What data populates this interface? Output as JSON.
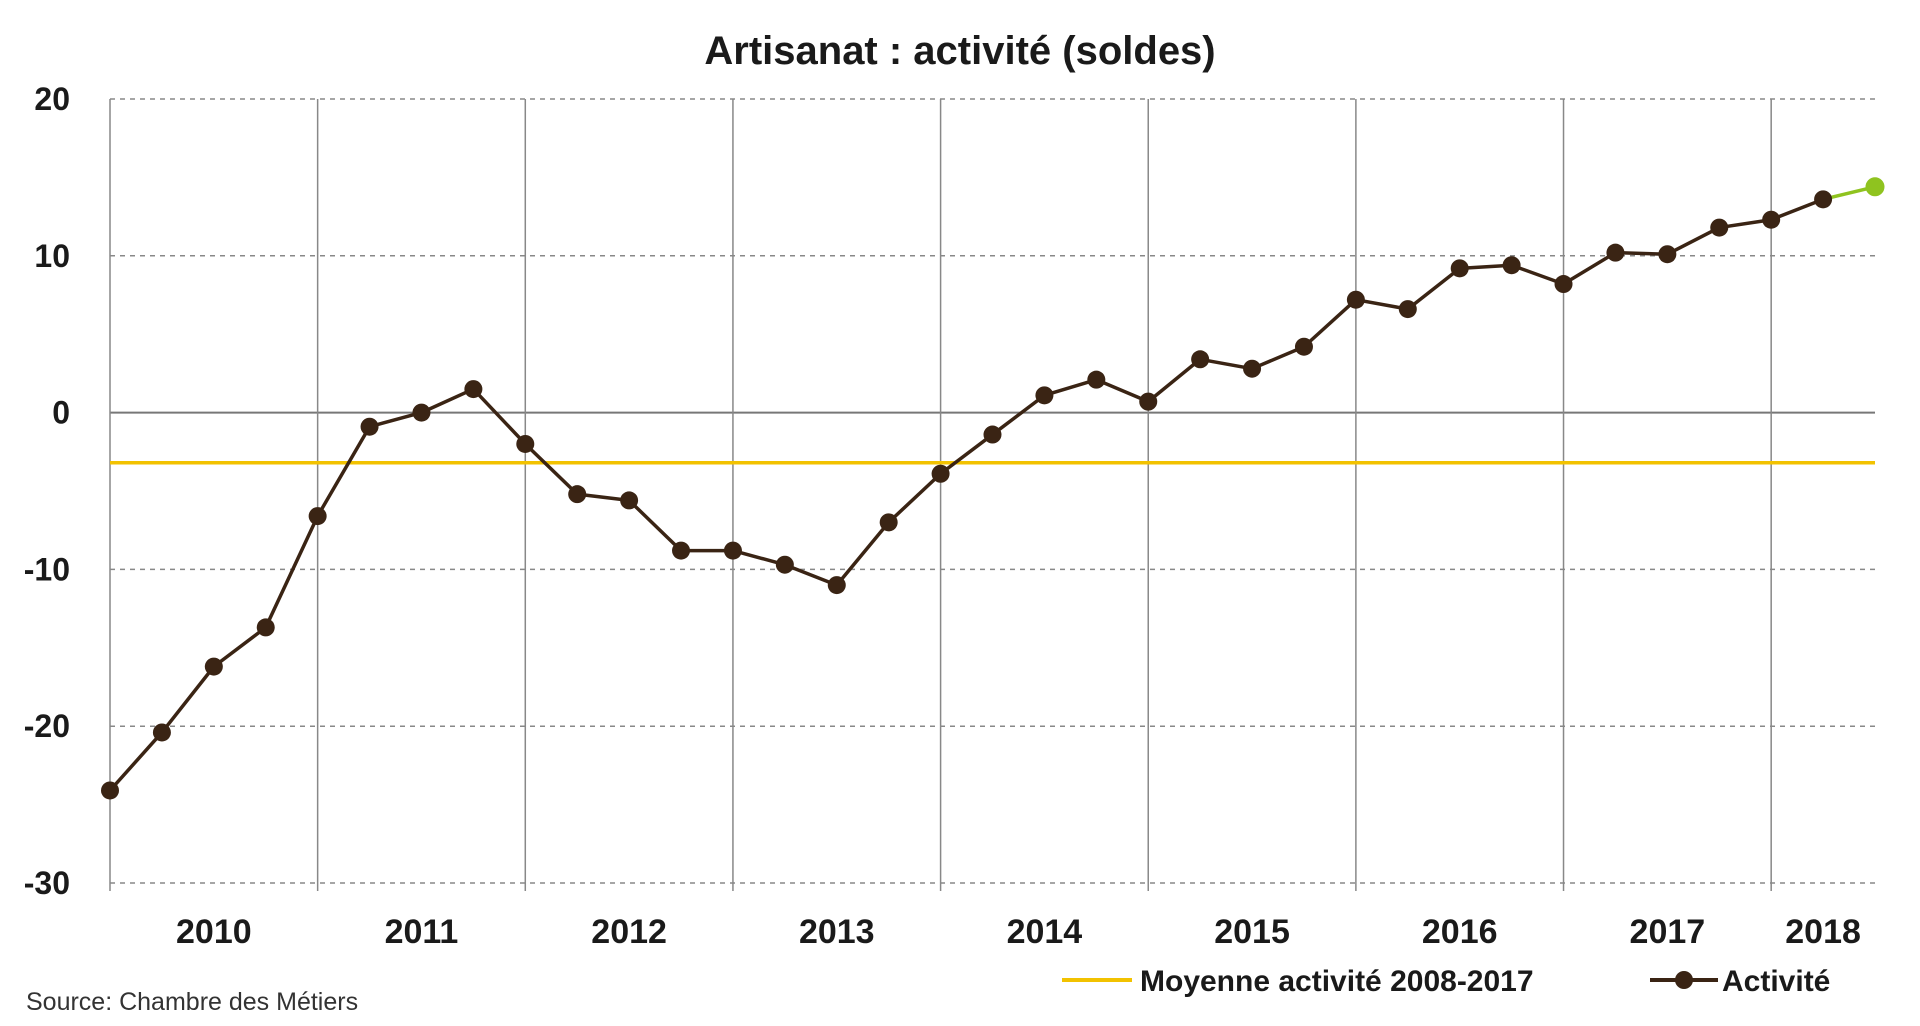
{
  "chart_data": {
    "type": "line",
    "title": "Artisanat : activité (soldes)",
    "source": "Source: Chambre des Métiers",
    "ylim": [
      -30,
      20
    ],
    "yticks": [
      20,
      10,
      0,
      -10,
      -20,
      -30
    ],
    "grid": true,
    "years": [
      "2010",
      "2011",
      "2012",
      "2013",
      "2014",
      "2015",
      "2016",
      "2017",
      "2018"
    ],
    "x_start_year": 2010,
    "x_end_year": 2018.5,
    "series": [
      {
        "name": "Activité",
        "color": "#3a2414",
        "last_point_color": "#8fc31f",
        "x": [
          2010.0,
          2010.25,
          2010.5,
          2010.75,
          2011.0,
          2011.25,
          2011.5,
          2011.75,
          2012.0,
          2012.25,
          2012.5,
          2012.75,
          2013.0,
          2013.25,
          2013.5,
          2013.75,
          2014.0,
          2014.25,
          2014.5,
          2014.75,
          2015.0,
          2015.25,
          2015.5,
          2015.75,
          2016.0,
          2016.25,
          2016.5,
          2016.75,
          2017.0,
          2017.25,
          2017.5,
          2017.75,
          2018.0,
          2018.25,
          2018.5
        ],
        "values": [
          -24.1,
          -20.4,
          -16.2,
          -13.7,
          -6.6,
          -0.9,
          0.0,
          1.5,
          -2.0,
          -5.2,
          -5.6,
          -8.8,
          -8.8,
          -9.7,
          -11.0,
          -7.0,
          -3.9,
          -1.4,
          1.1,
          2.1,
          0.7,
          3.4,
          2.8,
          4.2,
          7.2,
          6.6,
          9.2,
          9.4,
          8.2,
          10.2,
          10.1,
          11.8,
          12.3,
          13.6,
          14.4
        ]
      },
      {
        "name": "Moyenne activité 2008-2017",
        "color": "#f2c200",
        "values": [
          -3.2
        ]
      }
    ],
    "legend": {
      "placement": "bottom-right",
      "items": [
        "Moyenne activité 2008-2017",
        "Activité"
      ]
    }
  }
}
